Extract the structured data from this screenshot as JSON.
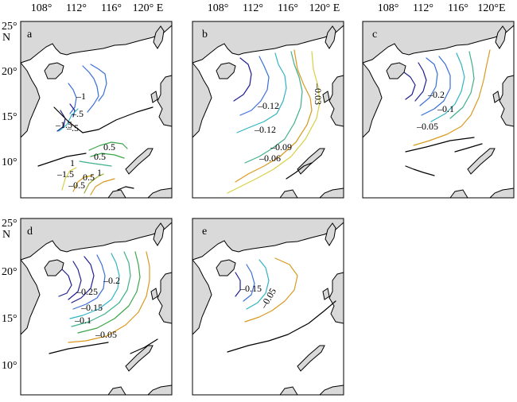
{
  "axes": {
    "lon_ticks": [
      "108°",
      "112°",
      "116°",
      "120° E"
    ],
    "lon_ticks_c": [
      "108°",
      "112°",
      "116°",
      "120°E"
    ],
    "lat_ticks": [
      "25°",
      "20°",
      "15°",
      "10°"
    ],
    "lat_unit": "N"
  },
  "panels": [
    {
      "id": "a",
      "letter": "a",
      "contour_labels": [
        "–1",
        "–.5",
        "–.5",
        "1",
        "0.5",
        "0.5",
        "1",
        "0.5",
        "–1.5",
        "–1.5",
        "–0.5"
      ]
    },
    {
      "id": "b",
      "letter": "b",
      "contour_labels": [
        "–0.12",
        "–0.12",
        "–0.09",
        "–0.06",
        "–0.03"
      ]
    },
    {
      "id": "c",
      "letter": "c",
      "contour_labels": [
        "–0.2",
        "–0.1",
        "–0.05"
      ]
    },
    {
      "id": "d",
      "letter": "d",
      "contour_labels": [
        "–0.25",
        "–0.2",
        "–0.15",
        "–0.1",
        "–0.05"
      ]
    },
    {
      "id": "e",
      "letter": "e",
      "contour_labels": [
        "–0.15",
        "–0.05"
      ]
    }
  ],
  "colors": {
    "land": "#d9d9d9",
    "navy": "#1f1f8f",
    "blue": "#3a6fd8",
    "cyan": "#2fb4c4",
    "teal": "#3fb08a",
    "green": "#3ca64a",
    "olive": "#9aaa2a",
    "yellow": "#d7d040",
    "orange": "#d89a1e",
    "black": "#000000"
  }
}
